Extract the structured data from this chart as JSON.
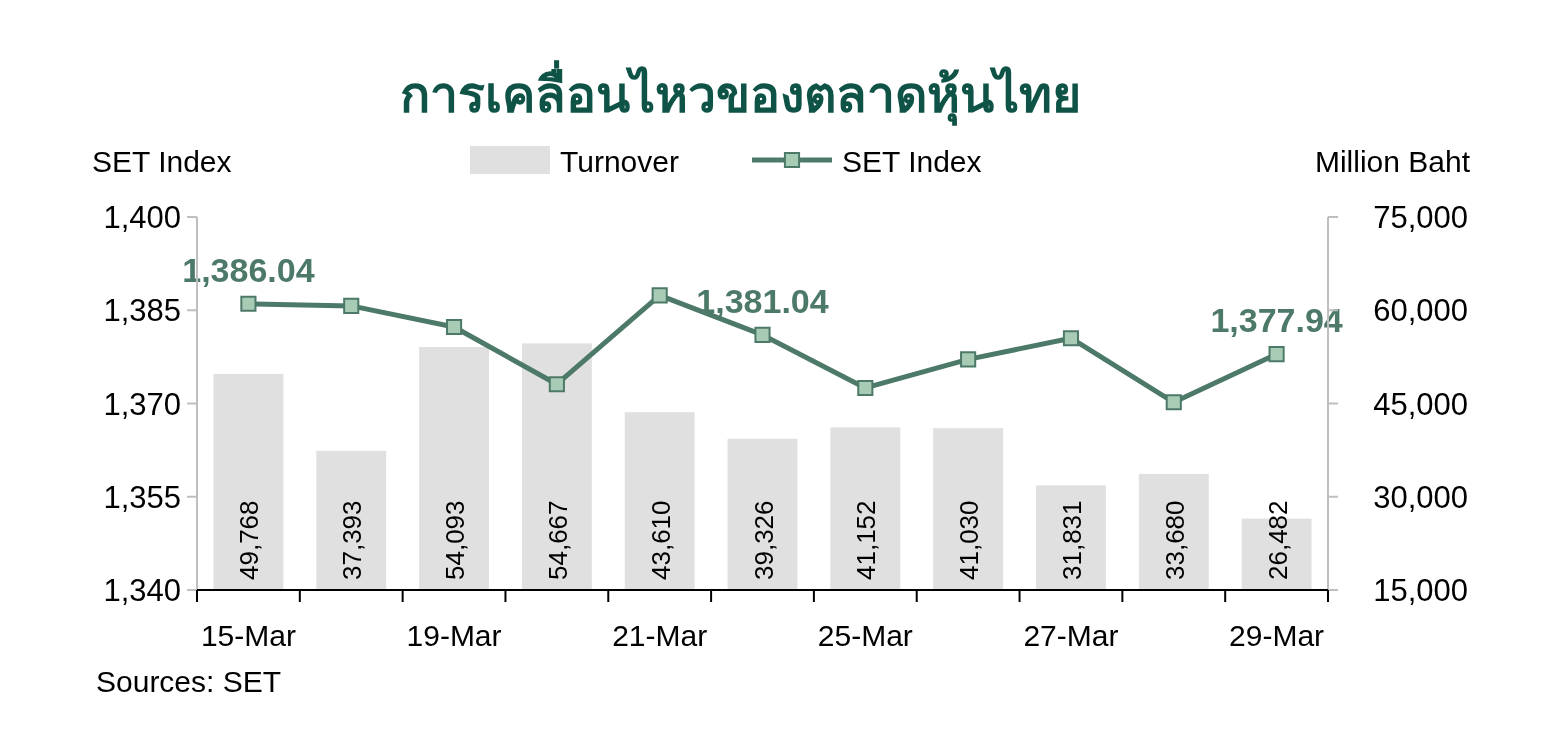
{
  "chart_data": {
    "type": "bar",
    "title": "การเคลื่อนไหวของตลาดหุ้นไทย",
    "ylabel": "SET Index",
    "y2label": "Million Baht",
    "categories": [
      "15-Mar",
      null,
      "19-Mar",
      null,
      "21-Mar",
      null,
      "25-Mar",
      null,
      "27-Mar",
      null,
      "29-Mar"
    ],
    "series": [
      {
        "name": "Turnover",
        "axis": "y2",
        "color": "#e0e0e0",
        "values": [
          49768,
          37393,
          54093,
          54667,
          43610,
          39326,
          41152,
          41030,
          31831,
          33680,
          26482
        ],
        "value_labels": [
          "49,768",
          "37,393",
          "54,093",
          "54,667",
          "43,610",
          "39,326",
          "41,152",
          "41,030",
          "31,831",
          "33,680",
          "26,482"
        ]
      },
      {
        "name": "SET Index",
        "type": "line",
        "axis": "y",
        "color": "#4d7a68",
        "marker": "square",
        "values": [
          1386.04,
          1385.7,
          1382.3,
          1373.1,
          1387.4,
          1381.04,
          1372.5,
          1377.1,
          1380.5,
          1370.2,
          1377.94
        ],
        "value_labels": [
          "1,386.04",
          null,
          null,
          null,
          null,
          "1,381.04",
          null,
          null,
          null,
          null,
          "1,377.94"
        ]
      }
    ],
    "ylim": [
      1340,
      1400
    ],
    "yticks": [
      {
        "value": 1340,
        "label": "1,340"
      },
      {
        "value": 1355,
        "label": "1,355"
      },
      {
        "value": 1370,
        "label": "1,370"
      },
      {
        "value": 1385,
        "label": "1,385"
      },
      {
        "value": 1400,
        "label": "1,400"
      }
    ],
    "y2lim": [
      15000,
      75000
    ],
    "y2ticks": [
      {
        "value": 15000,
        "label": "15,000"
      },
      {
        "value": 30000,
        "label": "30,000"
      },
      {
        "value": 45000,
        "label": "45,000"
      },
      {
        "value": 60000,
        "label": "60,000"
      },
      {
        "value": 75000,
        "label": "75,000"
      }
    ],
    "legend": "top",
    "annotations": [
      "Sources: SET"
    ]
  }
}
